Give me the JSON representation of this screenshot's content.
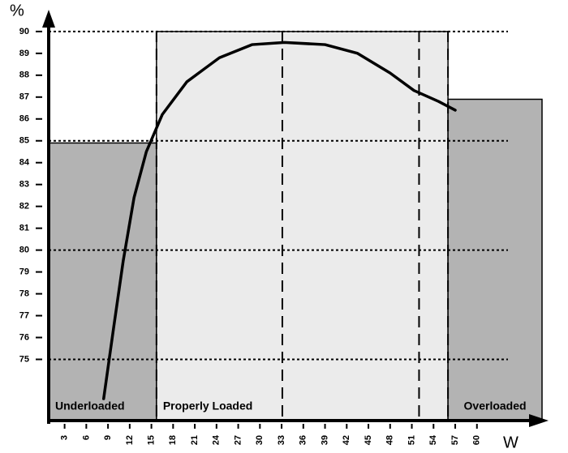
{
  "chart_data": {
    "type": "line",
    "y_label": "%",
    "x_label": "W",
    "xlim": [
      0.8,
      69
    ],
    "ylim": [
      72.2,
      90.7
    ],
    "xticks": [
      3,
      6,
      9,
      12,
      15,
      18,
      21,
      24,
      27,
      30,
      33,
      36,
      39,
      42,
      45,
      48,
      51,
      54,
      57,
      60
    ],
    "yticks": [
      75,
      76,
      77,
      78,
      79,
      80,
      81,
      82,
      83,
      84,
      85,
      86,
      87,
      88,
      89,
      90
    ],
    "hlines": [
      75,
      80,
      85,
      90
    ],
    "vlines": [
      15.7,
      33.1,
      52,
      56
    ],
    "regions": [
      {
        "label": "Underloaded",
        "x": [
          0.8,
          15.7
        ],
        "top": 84.9,
        "color": "#b3b3b3"
      },
      {
        "label": "Properly Loaded",
        "x": [
          15.7,
          56
        ],
        "top": 90,
        "color": "#ebebeb"
      },
      {
        "label": "Overloaded",
        "x": [
          56,
          69
        ],
        "top": 86.9,
        "color": "#b3b3b3"
      }
    ],
    "series": [
      {
        "color": "#000000",
        "x": [
          8.4,
          9.8,
          11.1,
          12.6,
          14.3,
          16.5,
          19.9,
          24.4,
          28.9,
          33.4,
          39,
          43.5,
          48,
          51.3,
          54.7,
          57
        ],
        "values": [
          73.2,
          76.5,
          79.5,
          82.4,
          84.5,
          86.2,
          87.7,
          88.8,
          89.4,
          89.5,
          89.4,
          89.0,
          88.1,
          87.3,
          86.8,
          86.4
        ]
      }
    ]
  }
}
